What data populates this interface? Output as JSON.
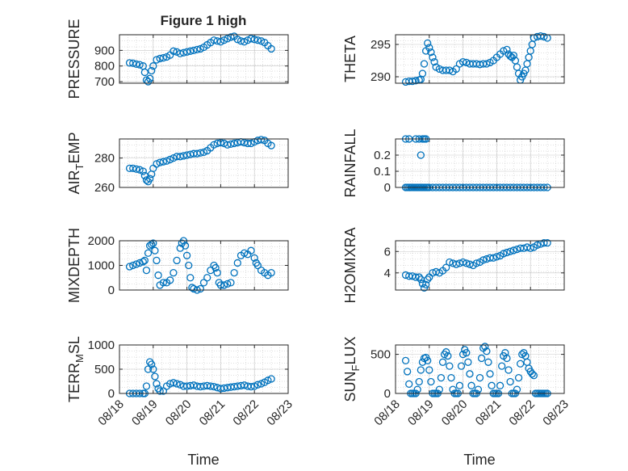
{
  "figure": {
    "title": "Figure 1 high"
  },
  "colors": {
    "marker": "#0072BD",
    "axis": "#262626",
    "grid": "#b0b0b0"
  },
  "shared_x": {
    "label": "Time",
    "range": [
      "08/18",
      "08/23"
    ],
    "ticks": [
      "08/18",
      "08/19",
      "08/20",
      "08/21",
      "08/22",
      "08/23"
    ]
  },
  "chart_data": [
    {
      "type": "scatter",
      "id": "pressure",
      "ylabel": "PRESSURE",
      "ylim": [
        690,
        1000
      ],
      "yticks": [
        700,
        800,
        900
      ],
      "yticklabels": [
        "700",
        "800",
        "900"
      ],
      "x": [
        0.3,
        0.4,
        0.5,
        0.6,
        0.7,
        0.75,
        0.8,
        0.85,
        0.9,
        0.95,
        1.0,
        1.1,
        1.2,
        1.3,
        1.4,
        1.5,
        1.6,
        1.7,
        1.8,
        1.9,
        2.0,
        2.1,
        2.2,
        2.3,
        2.4,
        2.5,
        2.6,
        2.7,
        2.8,
        2.9,
        3.0,
        3.1,
        3.2,
        3.3,
        3.4,
        3.5,
        3.6,
        3.7,
        3.8,
        3.9,
        4.0,
        4.1,
        4.2,
        4.3,
        4.4,
        4.5
      ],
      "y": [
        820,
        818,
        812,
        808,
        800,
        760,
        710,
        700,
        720,
        770,
        800,
        840,
        848,
        852,
        858,
        870,
        895,
        890,
        880,
        885,
        890,
        895,
        900,
        905,
        910,
        920,
        935,
        950,
        965,
        960,
        955,
        965,
        975,
        985,
        990,
        970,
        960,
        955,
        965,
        975,
        970,
        965,
        960,
        950,
        930,
        910
      ]
    },
    {
      "type": "scatter",
      "id": "theta",
      "ylabel": "THETA",
      "ylim": [
        289,
        296.5
      ],
      "yticks": [
        290,
        295
      ],
      "yticklabels": [
        "290",
        "295"
      ],
      "x": [
        0.3,
        0.4,
        0.5,
        0.6,
        0.7,
        0.75,
        0.8,
        0.85,
        0.9,
        0.95,
        1.0,
        1.05,
        1.1,
        1.15,
        1.2,
        1.3,
        1.4,
        1.5,
        1.6,
        1.7,
        1.8,
        1.9,
        2.0,
        2.1,
        2.2,
        2.3,
        2.4,
        2.5,
        2.6,
        2.7,
        2.8,
        2.9,
        3.0,
        3.1,
        3.2,
        3.3,
        3.35,
        3.4,
        3.45,
        3.5,
        3.55,
        3.6,
        3.65,
        3.7,
        3.75,
        3.8,
        3.85,
        3.9,
        3.95,
        4.0,
        4.05,
        4.1,
        4.2,
        4.3,
        4.4,
        4.5
      ],
      "y": [
        289.2,
        289.3,
        289.3,
        289.4,
        289.5,
        289.6,
        290.5,
        292,
        294,
        295.2,
        294.5,
        293.8,
        293,
        292.3,
        291.5,
        291.2,
        291,
        291,
        291,
        290.8,
        291.2,
        292,
        292.3,
        292.2,
        292,
        292,
        292,
        291.9,
        292,
        292,
        292.2,
        292.5,
        293,
        293.5,
        294,
        294.2,
        293.5,
        293.2,
        293,
        293.3,
        292.5,
        291.5,
        290.5,
        289.5,
        290,
        290.5,
        291,
        292,
        293,
        294,
        295,
        296,
        296.2,
        296.3,
        296.2,
        296
      ]
    },
    {
      "type": "scatter",
      "id": "air_temp",
      "ylabel": "AIR_TEMP",
      "ylim": [
        260,
        293
      ],
      "yticks": [
        260,
        280
      ],
      "yticklabels": [
        "260",
        "280"
      ],
      "x": [
        0.3,
        0.4,
        0.5,
        0.6,
        0.7,
        0.75,
        0.8,
        0.85,
        0.9,
        0.95,
        1.0,
        1.1,
        1.2,
        1.3,
        1.4,
        1.5,
        1.6,
        1.7,
        1.8,
        1.9,
        2.0,
        2.1,
        2.2,
        2.3,
        2.4,
        2.5,
        2.6,
        2.7,
        2.8,
        2.9,
        3.0,
        3.1,
        3.2,
        3.3,
        3.4,
        3.5,
        3.6,
        3.7,
        3.8,
        3.9,
        4.0,
        4.1,
        4.2,
        4.3,
        4.4,
        4.5
      ],
      "y": [
        273,
        273,
        272.5,
        272,
        271,
        268,
        265,
        264,
        266,
        269,
        273,
        276,
        277,
        277.5,
        278,
        279,
        280,
        281,
        281,
        281.5,
        282,
        282.5,
        283,
        283,
        283.5,
        284,
        285,
        287,
        289,
        290,
        290.5,
        290,
        289,
        289.5,
        290,
        290.5,
        291,
        290.5,
        290,
        290,
        291,
        292,
        292.5,
        292,
        290,
        288.5
      ]
    },
    {
      "type": "scatter",
      "id": "rainfall",
      "ylabel": "RAINFALL",
      "ylim": [
        0,
        0.3
      ],
      "yticks": [
        0,
        0.1,
        0.2
      ],
      "yticklabels": [
        "0",
        "0.1",
        "0.2"
      ],
      "x": [
        0.3,
        0.35,
        0.4,
        0.45,
        0.5,
        0.55,
        0.6,
        0.65,
        0.7,
        0.75,
        0.8,
        0.85,
        0.9,
        0.95,
        1.0,
        1.1,
        1.2,
        1.3,
        1.4,
        1.5,
        1.6,
        1.7,
        1.8,
        1.9,
        2.0,
        2.1,
        2.2,
        2.3,
        2.4,
        2.5,
        2.6,
        2.7,
        2.8,
        2.9,
        3.0,
        3.1,
        3.2,
        3.3,
        3.4,
        3.5,
        3.6,
        3.7,
        3.8,
        3.9,
        4.0,
        4.1,
        4.2,
        4.3,
        4.4,
        4.5,
        0.3,
        0.4,
        0.6,
        0.7,
        0.75,
        0.8,
        0.85,
        0.9
      ],
      "y": [
        0,
        0,
        0,
        0,
        0,
        0,
        0,
        0,
        0,
        0,
        0,
        0,
        0,
        0,
        0,
        0,
        0,
        0,
        0,
        0,
        0,
        0,
        0,
        0,
        0,
        0,
        0,
        0,
        0,
        0,
        0,
        0,
        0,
        0,
        0,
        0,
        0,
        0,
        0,
        0,
        0,
        0,
        0,
        0,
        0,
        0,
        0,
        0,
        0,
        0,
        0.3,
        0.3,
        0.3,
        0.3,
        0.2,
        0.3,
        0.3,
        0.3
      ]
    },
    {
      "type": "scatter",
      "id": "mixdepth",
      "ylabel": "MIXDEPTH",
      "ylim": [
        0,
        2000
      ],
      "yticks": [
        0,
        1000,
        2000
      ],
      "yticklabels": [
        "0",
        "1000",
        "2000"
      ],
      "x": [
        0.3,
        0.4,
        0.5,
        0.6,
        0.7,
        0.75,
        0.8,
        0.85,
        0.9,
        0.95,
        1.0,
        1.05,
        1.1,
        1.15,
        1.2,
        1.3,
        1.4,
        1.5,
        1.6,
        1.7,
        1.8,
        1.85,
        1.9,
        1.95,
        2.0,
        2.05,
        2.1,
        2.15,
        2.2,
        2.3,
        2.4,
        2.5,
        2.6,
        2.7,
        2.8,
        2.85,
        2.9,
        2.95,
        3.0,
        3.1,
        3.2,
        3.3,
        3.4,
        3.5,
        3.6,
        3.7,
        3.8,
        3.9,
        4.0,
        4.05,
        4.1,
        4.2,
        4.3,
        4.4,
        4.5
      ],
      "y": [
        950,
        1000,
        1050,
        1100,
        1150,
        1200,
        800,
        1500,
        1800,
        1850,
        1900,
        1600,
        1200,
        600,
        200,
        300,
        300,
        400,
        700,
        1200,
        1700,
        1900,
        2000,
        1800,
        1400,
        1000,
        500,
        100,
        50,
        0,
        50,
        300,
        500,
        800,
        1000,
        900,
        700,
        300,
        200,
        200,
        250,
        300,
        700,
        1100,
        1400,
        1500,
        1450,
        1600,
        1300,
        1100,
        1000,
        800,
        700,
        600,
        700
      ]
    },
    {
      "type": "scatter",
      "id": "h2omixra",
      "ylabel": "H2OMIXRA",
      "ylim": [
        2.4,
        7
      ],
      "yticks": [
        4,
        6
      ],
      "yticklabels": [
        "4",
        "6"
      ],
      "x": [
        0.3,
        0.4,
        0.5,
        0.6,
        0.7,
        0.75,
        0.8,
        0.85,
        0.9,
        0.95,
        1.0,
        1.1,
        1.2,
        1.3,
        1.4,
        1.5,
        1.6,
        1.7,
        1.8,
        1.9,
        2.0,
        2.1,
        2.2,
        2.3,
        2.4,
        2.5,
        2.6,
        2.7,
        2.8,
        2.9,
        3.0,
        3.1,
        3.2,
        3.3,
        3.4,
        3.5,
        3.6,
        3.7,
        3.8,
        3.9,
        4.0,
        4.1,
        4.2,
        4.3,
        4.4,
        4.5
      ],
      "y": [
        3.8,
        3.7,
        3.7,
        3.6,
        3.6,
        3.4,
        3.0,
        2.6,
        2.9,
        3.4,
        3.6,
        4.0,
        4.1,
        4.0,
        4.2,
        4.5,
        5.0,
        4.9,
        4.8,
        4.9,
        5.0,
        4.9,
        4.8,
        4.7,
        4.9,
        5.0,
        5.2,
        5.3,
        5.4,
        5.4,
        5.5,
        5.6,
        5.8,
        5.9,
        6.0,
        6.1,
        6.2,
        6.3,
        6.3,
        6.4,
        6.3,
        6.4,
        6.6,
        6.7,
        6.8,
        6.8
      ]
    },
    {
      "type": "scatter",
      "id": "terr_msl",
      "ylabel": "TERR_MSL",
      "ylim": [
        0,
        1000
      ],
      "yticks": [
        0,
        500,
        1000
      ],
      "yticklabels": [
        "0",
        "500",
        "1000"
      ],
      "x": [
        0.3,
        0.4,
        0.5,
        0.6,
        0.7,
        0.75,
        0.8,
        0.85,
        0.9,
        0.95,
        1.0,
        1.05,
        1.1,
        1.15,
        1.2,
        1.3,
        1.4,
        1.5,
        1.6,
        1.7,
        1.8,
        1.9,
        2.0,
        2.1,
        2.2,
        2.3,
        2.4,
        2.5,
        2.6,
        2.7,
        2.8,
        2.9,
        3.0,
        3.1,
        3.2,
        3.3,
        3.4,
        3.5,
        3.6,
        3.7,
        3.8,
        3.9,
        4.0,
        4.1,
        4.2,
        4.3,
        4.4,
        4.5
      ],
      "y": [
        0,
        0,
        0,
        0,
        0,
        0,
        150,
        500,
        650,
        600,
        500,
        350,
        200,
        100,
        50,
        50,
        150,
        200,
        220,
        200,
        180,
        150,
        150,
        160,
        170,
        150,
        140,
        150,
        160,
        150,
        140,
        120,
        100,
        110,
        120,
        130,
        140,
        150,
        160,
        170,
        150,
        140,
        150,
        180,
        200,
        230,
        270,
        300
      ]
    },
    {
      "type": "scatter",
      "id": "sun_flux",
      "ylabel": "SUN_FLUX",
      "ylim": [
        0,
        620
      ],
      "yticks": [
        0,
        500
      ],
      "yticklabels": [
        "0",
        "500"
      ],
      "x": [
        0.3,
        0.35,
        0.4,
        0.45,
        0.5,
        0.55,
        0.6,
        0.65,
        0.7,
        0.75,
        0.8,
        0.85,
        0.9,
        0.95,
        1.0,
        1.05,
        1.1,
        1.15,
        1.2,
        1.25,
        1.3,
        1.35,
        1.4,
        1.45,
        1.5,
        1.55,
        1.6,
        1.65,
        1.7,
        1.75,
        1.8,
        1.85,
        1.9,
        1.95,
        2.0,
        2.05,
        2.1,
        2.15,
        2.2,
        2.25,
        2.3,
        2.35,
        2.4,
        2.45,
        2.5,
        2.55,
        2.6,
        2.65,
        2.7,
        2.75,
        2.8,
        2.85,
        2.9,
        2.95,
        3.0,
        3.05,
        3.1,
        3.15,
        3.2,
        3.25,
        3.3,
        3.35,
        3.4,
        3.45,
        3.5,
        3.55,
        3.6,
        3.65,
        3.7,
        3.75,
        3.8,
        3.85,
        3.9,
        3.95,
        4.0,
        4.05,
        4.1,
        4.15,
        4.2,
        4.25,
        4.3,
        4.35,
        4.4,
        4.45,
        4.5
      ],
      "y": [
        420,
        280,
        120,
        0,
        0,
        0,
        0,
        50,
        150,
        300,
        400,
        450,
        460,
        420,
        300,
        150,
        0,
        0,
        0,
        0,
        50,
        200,
        400,
        500,
        530,
        480,
        350,
        200,
        50,
        0,
        0,
        0,
        100,
        350,
        500,
        560,
        520,
        400,
        250,
        100,
        0,
        0,
        0,
        50,
        200,
        450,
        580,
        600,
        540,
        400,
        250,
        100,
        0,
        0,
        0,
        0,
        100,
        350,
        480,
        520,
        450,
        300,
        150,
        0,
        0,
        0,
        50,
        200,
        380,
        500,
        520,
        480,
        400,
        320,
        280,
        250,
        230,
        0,
        0,
        0,
        0,
        0,
        0,
        0,
        0
      ]
    }
  ]
}
